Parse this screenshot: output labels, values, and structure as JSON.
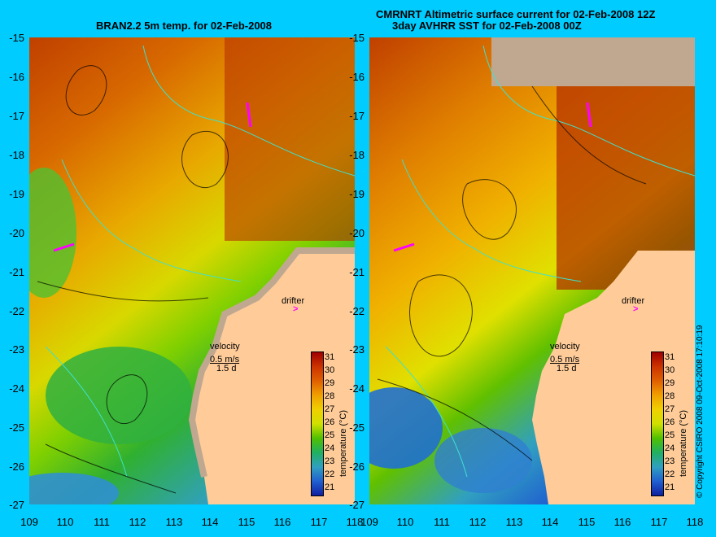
{
  "panels": [
    {
      "title_lines": [
        "BRAN2.2 5m temp. for 02-Feb-2008"
      ],
      "drifter_label": "drifter",
      "velocity_label": "velocity",
      "velocity_scale": "0.5 m/s",
      "velocity_time": "1.5 d",
      "colorbar_title": "temperature (°C)",
      "colorbar_ticks": [
        "31",
        "30",
        "29",
        "28",
        "27",
        "26",
        "25",
        "24",
        "23",
        "22",
        "21"
      ]
    },
    {
      "title_lines": [
        "CMRNRT Altimetric surface current for 02-Feb-2008 12Z",
        "3day AVHRR SST for 02-Feb-2008 00Z"
      ],
      "drifter_label": "drifter",
      "velocity_label": "velocity",
      "velocity_scale": "0.5 m/s",
      "velocity_time": "1.5 d",
      "colorbar_title": "temperature (°C)",
      "colorbar_ticks": [
        "31",
        "30",
        "29",
        "28",
        "27",
        "26",
        "25",
        "24",
        "23",
        "22",
        "21"
      ]
    }
  ],
  "y_ticks": [
    "-15",
    "-16",
    "-17",
    "-18",
    "-19",
    "-20",
    "-21",
    "-22",
    "-23",
    "-24",
    "-25",
    "-26",
    "-27"
  ],
  "x_ticks": [
    "109",
    "110",
    "111",
    "112",
    "113",
    "114",
    "115",
    "116",
    "117",
    "118"
  ],
  "copyright": "© Copyright CSIRO 2008   09-Oct-2008 17:10:19",
  "colors": {
    "background": "#00ccff",
    "land": "#ffcc99",
    "coast_grey": "#c0a890",
    "bathymetry_line": "#40e0d0",
    "drifter": "#ff00ff",
    "colorbar": [
      "#a00000",
      "#cc3300",
      "#e06000",
      "#f0a000",
      "#f0d000",
      "#d0e000",
      "#50c000",
      "#20b060",
      "#30a0c0",
      "#2060d0",
      "#1020a0"
    ]
  }
}
